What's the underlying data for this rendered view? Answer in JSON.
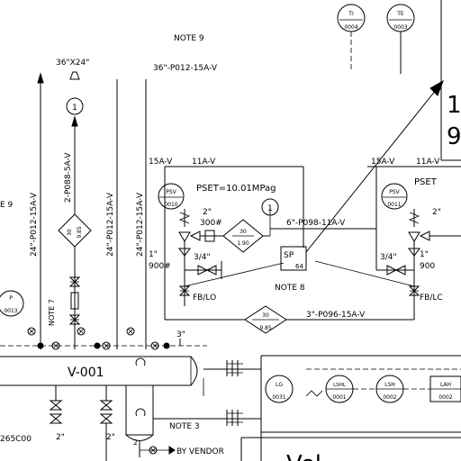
{
  "notes": {
    "note9_top": "NOTE 9",
    "note9_left": "E 9",
    "note7": "NOTE 7",
    "note8": "NOTE 8",
    "note3": "NOTE 3",
    "by_vendor": "BY VENDOR"
  },
  "lines": {
    "size_36x24": "36\"X24\"",
    "p012_36": "36\"-P012-15A-V",
    "p012_24_a": "24\"-P012-15A-V",
    "p088": "2-P088-5A-V",
    "p012_24_b": "24\"-P012-15A-V",
    "p012_24_c": "24\"-P012-15A-V",
    "top_left_15a": "15A-V",
    "top_left_11a": "11A-V",
    "top_right_15a": "15A-V",
    "top_right_11a": "11A-V",
    "p098": "6\"-P098-11A-V",
    "p096": "3\"-P096-15A-V"
  },
  "psv": {
    "left_tag": "PSV",
    "left_num": "0010",
    "right_tag": "PSV",
    "right_num": "0011",
    "pset": "PSET=10.01MPag",
    "pset_right": "PSET"
  },
  "sizes": {
    "s2_a": "2\"",
    "s300": "300#",
    "s1_a": "1\"",
    "s900_a": "900#",
    "s34_a": "3/4\"",
    "fblo_a": "FB/LO",
    "s34_b": "3/4\"",
    "s1_b": "1\"",
    "s900_b": "900",
    "fblo_b": "FB/LC",
    "s2_b": "2\"",
    "s3": "3\"",
    "s2_c": "2\"",
    "s2_d": "2\"",
    "s2_e": "2"
  },
  "diamonds": {
    "d1_top": "30",
    "d1_bot": "9.85",
    "d2_top": "30",
    "d2_bot": "1.90",
    "d3_top": "30",
    "d3_bot": "9.85"
  },
  "circles": {
    "ti_tag": "TI",
    "ti_num": "0004",
    "te_tag": "TE",
    "te_num": "0003",
    "p_tag": "P",
    "p_num": "0013",
    "one_a": "1",
    "one_b": "1",
    "lg_tag": "LG",
    "lg_num": "0031",
    "lshl_tag": "LSHL",
    "lshl_num": "0001",
    "lsh_tag": "LSH",
    "lsh_num": "0002",
    "lah_tag": "LAH",
    "lah_num": "0002"
  },
  "equipment": {
    "vessel": "V-001",
    "sp": "SP",
    "sp_num": "64",
    "left_code": "265C00",
    "big_1": "1",
    "big_9": "9",
    "bottom_text": "Vel"
  }
}
